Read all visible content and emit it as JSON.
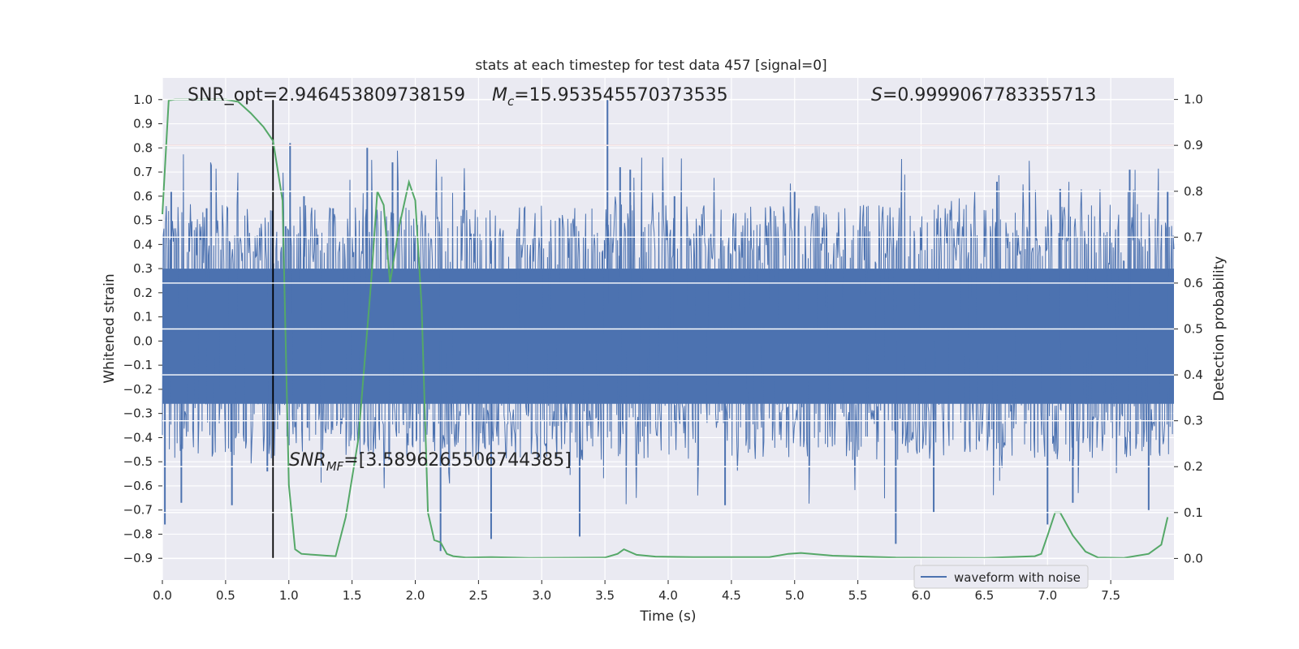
{
  "chart_data": {
    "type": "line",
    "title": "stats at each timestep for test data 457 [signal=0]",
    "xlabel": "Time (s)",
    "ylabel": "Whitened strain",
    "y2label": "Detection probability",
    "xlim": [
      0.0,
      8.0
    ],
    "ylim": [
      -0.99,
      1.09
    ],
    "y2lim": [
      -0.047,
      1.047
    ],
    "xticks": [
      0.0,
      0.5,
      1.0,
      1.5,
      2.0,
      2.5,
      3.0,
      3.5,
      4.0,
      4.5,
      5.0,
      5.5,
      6.0,
      6.5,
      7.0,
      7.5
    ],
    "yticks": [
      -0.9,
      -0.8,
      -0.7,
      -0.6,
      -0.5,
      -0.4,
      -0.3,
      -0.2,
      -0.1,
      0.0,
      0.1,
      0.2,
      0.3,
      0.4,
      0.5,
      0.6,
      0.7,
      0.8,
      0.9,
      1.0
    ],
    "y2ticks": [
      0.0,
      0.1,
      0.2,
      0.3,
      0.4,
      0.5,
      0.6,
      0.7,
      0.8,
      0.9,
      1.0
    ],
    "grid": true,
    "legend": {
      "placement": "lower-right",
      "entries": [
        "waveform with noise"
      ]
    },
    "annotations": {
      "snr_opt": "SNR_opt=2.946453809738159",
      "mc_symbol": "M",
      "mc_sub": "c",
      "mc_value": "=15.953545570373535",
      "s_symbol": "S",
      "s_value": "=0.9999067783355713",
      "snrmf_symbol": "SNR",
      "snrmf_sub": "MF",
      "snrmf_value": "=[3.5896265506744385]"
    },
    "threshold": {
      "y2": 0.9
    },
    "peak_marker": {
      "x": 0.875,
      "y_from": -0.9,
      "y_to": 1.0
    },
    "waveform": {
      "name": "waveform with noise",
      "color": "#4c72b0",
      "envelope_pos": 0.42,
      "envelope_neg": -0.34,
      "spikes": [
        [
          0.02,
          -0.76
        ],
        [
          0.07,
          0.62
        ],
        [
          0.15,
          -0.67
        ],
        [
          0.35,
          0.55
        ],
        [
          0.55,
          -0.68
        ],
        [
          0.83,
          -0.54
        ],
        [
          0.87,
          0.54
        ],
        [
          1.01,
          0.82
        ],
        [
          1.12,
          0.6
        ],
        [
          1.35,
          0.55
        ],
        [
          1.62,
          0.8
        ],
        [
          1.82,
          0.74
        ],
        [
          2.2,
          -0.87
        ],
        [
          2.6,
          -0.82
        ],
        [
          3.3,
          -0.81
        ],
        [
          3.52,
          1.0
        ],
        [
          3.62,
          0.72
        ],
        [
          3.7,
          0.71
        ],
        [
          4.05,
          0.6
        ],
        [
          4.45,
          -0.68
        ],
        [
          5.0,
          0.62
        ],
        [
          5.8,
          -0.84
        ],
        [
          6.1,
          -0.71
        ],
        [
          6.6,
          0.66
        ],
        [
          7.0,
          -0.76
        ],
        [
          7.1,
          0.63
        ],
        [
          7.2,
          -0.67
        ],
        [
          7.65,
          0.71
        ],
        [
          7.8,
          -0.7
        ],
        [
          7.95,
          0.62
        ]
      ]
    },
    "detection_probability": {
      "color": "#55a868",
      "x": [
        0.0,
        0.05,
        0.1,
        0.2,
        0.35,
        0.5,
        0.6,
        0.7,
        0.8,
        0.875,
        0.95,
        1.0,
        1.05,
        1.1,
        1.2,
        1.3,
        1.37,
        1.45,
        1.55,
        1.65,
        1.7,
        1.75,
        1.8,
        1.87,
        1.95,
        2.0,
        2.05,
        2.1,
        2.15,
        2.2,
        2.25,
        2.3,
        2.4,
        2.6,
        2.9,
        3.5,
        3.6,
        3.65,
        3.75,
        3.9,
        4.2,
        4.8,
        4.95,
        5.05,
        5.3,
        5.8,
        6.5,
        6.9,
        6.95,
        7.0,
        7.06,
        7.1,
        7.2,
        7.3,
        7.4,
        7.6,
        7.8,
        7.9,
        7.95
      ],
      "y": [
        0.75,
        0.998,
        1.0,
        1.0,
        1.0,
        1.0,
        0.995,
        0.97,
        0.94,
        0.91,
        0.78,
        0.16,
        0.02,
        0.01,
        0.008,
        0.006,
        0.005,
        0.09,
        0.26,
        0.6,
        0.8,
        0.77,
        0.6,
        0.72,
        0.82,
        0.78,
        0.55,
        0.1,
        0.04,
        0.035,
        0.01,
        0.005,
        0.002,
        0.003,
        0.001,
        0.002,
        0.01,
        0.02,
        0.008,
        0.004,
        0.003,
        0.003,
        0.01,
        0.012,
        0.006,
        0.002,
        0.001,
        0.005,
        0.01,
        0.05,
        0.1,
        0.1,
        0.05,
        0.015,
        0.002,
        0.001,
        0.01,
        0.03,
        0.09
      ]
    }
  }
}
